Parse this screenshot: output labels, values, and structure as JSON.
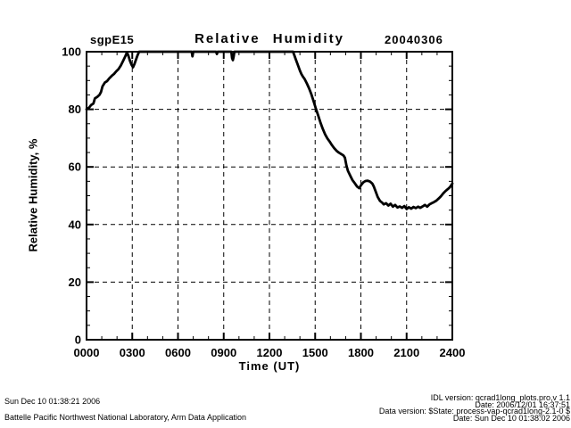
{
  "header": {
    "site_label": "sgpE15",
    "title": "Relative Humidity",
    "date_label": "20040306"
  },
  "chart_data": {
    "type": "line",
    "title": "Relative Humidity",
    "xlabel": "Time (UT)",
    "ylabel": "Relative Humidity, %",
    "xlim": [
      0,
      24
    ],
    "ylim": [
      0,
      100
    ],
    "x_ticks": {
      "values": [
        0,
        3,
        6,
        9,
        12,
        15,
        18,
        21,
        24
      ],
      "labels": [
        "0000",
        "0300",
        "0600",
        "0900",
        "1200",
        "1500",
        "1800",
        "2100",
        "2400"
      ],
      "minor_step": 1
    },
    "y_ticks": {
      "values": [
        0,
        20,
        40,
        60,
        80,
        100
      ],
      "labels": [
        "0",
        "20",
        "40",
        "60",
        "80",
        "100"
      ],
      "minor_step": 5
    },
    "grid": {
      "show": true,
      "style": "dashed",
      "color": "#000000"
    },
    "line_color": "#000000",
    "background_color": "#ffffff",
    "series": [
      {
        "name": "relative_humidity",
        "points": [
          [
            0.0,
            80
          ],
          [
            0.15,
            80.5
          ],
          [
            0.3,
            81.5
          ],
          [
            0.45,
            82
          ],
          [
            0.55,
            83.8
          ],
          [
            0.7,
            84.3
          ],
          [
            0.85,
            85
          ],
          [
            0.95,
            86
          ],
          [
            1.05,
            88
          ],
          [
            1.2,
            89.3
          ],
          [
            1.35,
            89.8
          ],
          [
            1.5,
            90.8
          ],
          [
            1.65,
            91.6
          ],
          [
            1.8,
            92.3
          ],
          [
            1.95,
            93.2
          ],
          [
            2.1,
            94
          ],
          [
            2.25,
            95.2
          ],
          [
            2.4,
            96.8
          ],
          [
            2.55,
            98.5
          ],
          [
            2.65,
            99.8
          ],
          [
            2.75,
            98.5
          ],
          [
            2.85,
            96.8
          ],
          [
            2.95,
            95.5
          ],
          [
            3.05,
            94.6
          ],
          [
            3.15,
            95.8
          ],
          [
            3.25,
            97.3
          ],
          [
            3.35,
            98.8
          ],
          [
            3.45,
            100
          ],
          [
            6.9,
            100
          ],
          [
            6.95,
            98.4
          ],
          [
            7.0,
            100
          ],
          [
            8.5,
            100
          ],
          [
            8.55,
            99.2
          ],
          [
            8.6,
            100
          ],
          [
            9.5,
            100
          ],
          [
            9.55,
            97.8
          ],
          [
            9.6,
            97.1
          ],
          [
            9.65,
            98.3
          ],
          [
            9.7,
            100
          ],
          [
            13.55,
            100
          ],
          [
            13.7,
            97.8
          ],
          [
            13.85,
            95.6
          ],
          [
            14.0,
            93.4
          ],
          [
            14.1,
            92.2
          ],
          [
            14.2,
            91.3
          ],
          [
            14.3,
            90.6
          ],
          [
            14.45,
            89
          ],
          [
            14.6,
            87.3
          ],
          [
            14.75,
            85.2
          ],
          [
            14.9,
            82.8
          ],
          [
            15.05,
            80.2
          ],
          [
            15.2,
            77.8
          ],
          [
            15.35,
            75.4
          ],
          [
            15.5,
            73.2
          ],
          [
            15.65,
            71.3
          ],
          [
            15.8,
            69.9
          ],
          [
            15.95,
            68.8
          ],
          [
            16.1,
            67.6
          ],
          [
            16.25,
            66.5
          ],
          [
            16.4,
            65.6
          ],
          [
            16.55,
            65
          ],
          [
            16.7,
            64.5
          ],
          [
            16.85,
            64
          ],
          [
            16.95,
            63.2
          ],
          [
            17.05,
            60.5
          ],
          [
            17.15,
            58.6
          ],
          [
            17.3,
            57
          ],
          [
            17.45,
            55.4
          ],
          [
            17.6,
            54.3
          ],
          [
            17.75,
            53.2
          ],
          [
            17.9,
            52.6
          ],
          [
            18.0,
            53.6
          ],
          [
            18.15,
            54.6
          ],
          [
            18.3,
            55.1
          ],
          [
            18.45,
            55.2
          ],
          [
            18.6,
            54.9
          ],
          [
            18.75,
            54.2
          ],
          [
            18.85,
            53.2
          ],
          [
            18.95,
            51.8
          ],
          [
            19.1,
            49.6
          ],
          [
            19.25,
            48.2
          ],
          [
            19.4,
            47.6
          ],
          [
            19.5,
            47
          ],
          [
            19.65,
            47.4
          ],
          [
            19.8,
            46.6
          ],
          [
            19.95,
            47.2
          ],
          [
            20.1,
            46.2
          ],
          [
            20.25,
            46.8
          ],
          [
            20.4,
            45.9
          ],
          [
            20.55,
            46.3
          ],
          [
            20.7,
            45.8
          ],
          [
            20.85,
            46.4
          ],
          [
            21.0,
            45.4
          ],
          [
            21.15,
            46
          ],
          [
            21.3,
            45.5
          ],
          [
            21.45,
            46.1
          ],
          [
            21.6,
            45.7
          ],
          [
            21.75,
            46.2
          ],
          [
            21.9,
            45.8
          ],
          [
            22.05,
            46.3
          ],
          [
            22.2,
            46.8
          ],
          [
            22.35,
            46.2
          ],
          [
            22.5,
            47
          ],
          [
            22.65,
            47.4
          ],
          [
            22.8,
            47.8
          ],
          [
            22.95,
            48.3
          ],
          [
            23.1,
            49
          ],
          [
            23.25,
            49.8
          ],
          [
            23.4,
            50.8
          ],
          [
            23.55,
            51.6
          ],
          [
            23.7,
            52.3
          ],
          [
            23.85,
            53
          ],
          [
            24.0,
            54.2
          ]
        ]
      }
    ]
  },
  "footer_left": {
    "line1": "Sun Dec 10 01:38:21 2006",
    "line2": "Battelle Pacific Northwest National Laboratory, Arm Data Application"
  },
  "footer_right": {
    "line1": "IDL version: qcrad1long_plots.pro,v 1.1",
    "line2": "Date: 2006/12/01 16:37:51",
    "line3": "Data version: $State: process-vap-qcrad1long-2.1-0 $",
    "line4": "Date: Sun Dec 10 01:38:02 2006"
  }
}
